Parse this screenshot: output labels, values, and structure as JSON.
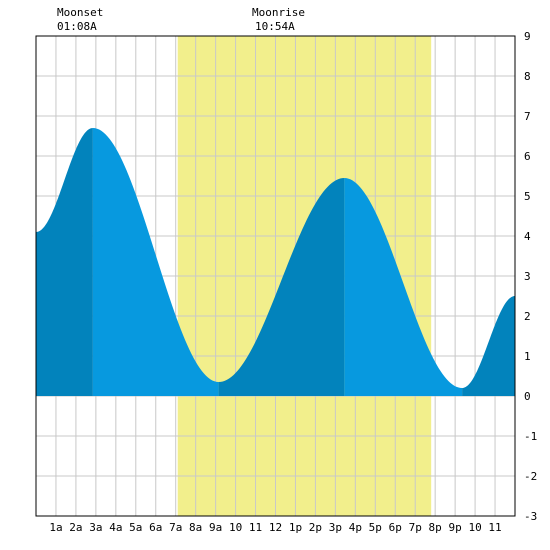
{
  "moon": {
    "moonset_label": "Moonset",
    "moonset_time": "01:08A",
    "moonrise_label": "Moonrise",
    "moonrise_time": "10:54A"
  },
  "colors": {
    "daylight": "#f2ef8c",
    "tide_rising": "#0283bc",
    "tide_falling": "#0799df",
    "grid": "#c8c8c8",
    "background": "#ffffff"
  },
  "chart_data": {
    "type": "area",
    "title": "",
    "xlabel": "",
    "ylabel": "",
    "x_tick_labels": [
      "1a",
      "2a",
      "3a",
      "4a",
      "5a",
      "6a",
      "7a",
      "8a",
      "9a",
      "10",
      "11",
      "12",
      "1p",
      "2p",
      "3p",
      "4p",
      "5p",
      "6p",
      "7p",
      "8p",
      "9p",
      "10",
      "11"
    ],
    "xlim": [
      0,
      24
    ],
    "ylim": [
      -3,
      9
    ],
    "y_ticks": [
      "9",
      "8",
      "7",
      "6",
      "5",
      "4",
      "3",
      "2",
      "1",
      "0",
      "-1",
      "-2",
      "-3"
    ],
    "grid": true,
    "daylight_span_hours": [
      7.1,
      19.8
    ],
    "tide_extremes": [
      {
        "hour": 0.0,
        "height": 4.1
      },
      {
        "hour": 2.85,
        "height": 6.7
      },
      {
        "hour": 9.15,
        "height": 0.35
      },
      {
        "hour": 15.45,
        "height": 5.45
      },
      {
        "hour": 21.35,
        "height": 0.2
      },
      {
        "hour": 24.0,
        "height": 2.5
      }
    ]
  }
}
